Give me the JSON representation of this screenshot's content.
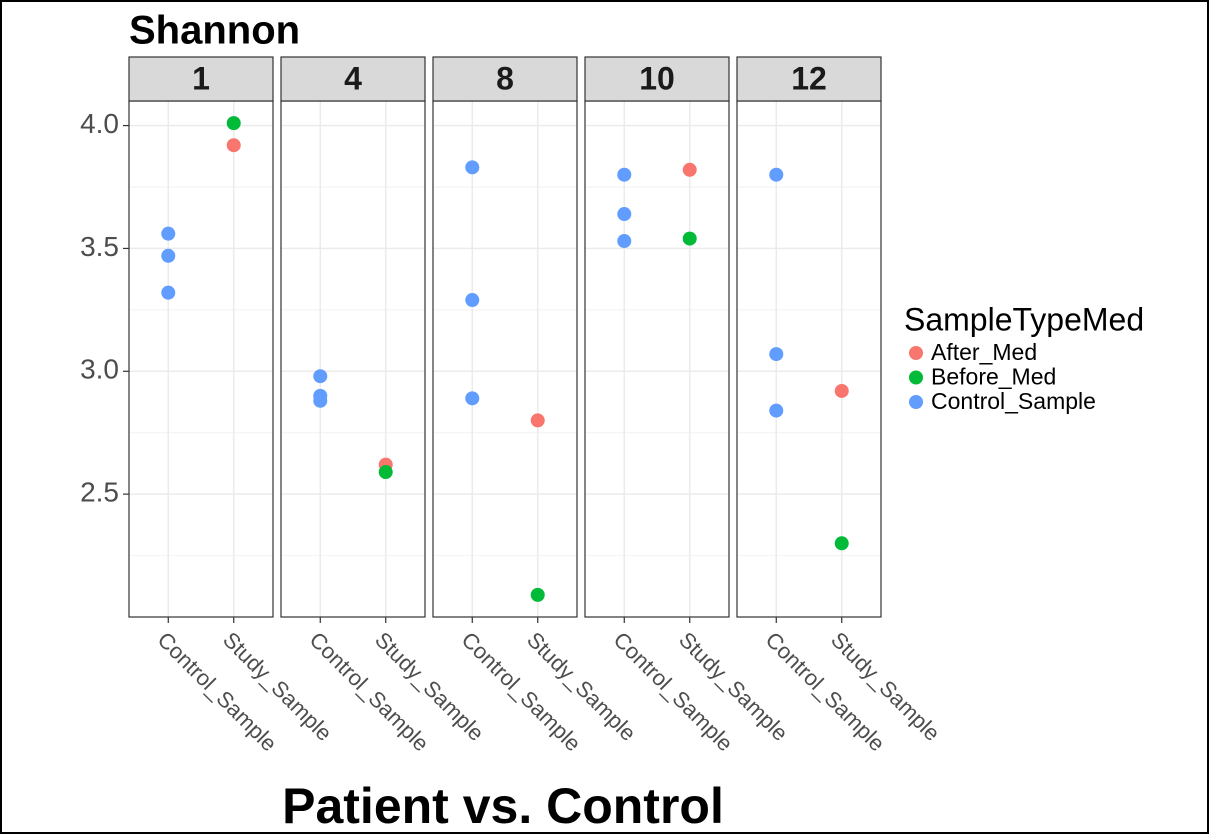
{
  "chart_data": {
    "type": "scatter",
    "title": "Shannon",
    "x_label": "Patient vs. Control",
    "legend_title": "SampleTypeMed",
    "legend_position": "right",
    "facets": [
      "1",
      "4",
      "8",
      "10",
      "12"
    ],
    "categories": [
      "Control_Sample",
      "Study_Sample"
    ],
    "ylim": [
      2.0,
      4.1
    ],
    "yticks": [
      {
        "value": 2.5,
        "label": "2.5"
      },
      {
        "value": 3.0,
        "label": "3.0"
      },
      {
        "value": 3.5,
        "label": "3.5"
      },
      {
        "value": 4.0,
        "label": "4.0"
      }
    ],
    "minor_yticks": [
      2.25,
      2.75,
      3.25,
      3.75
    ],
    "grid": true,
    "series": [
      {
        "name": "After_Med",
        "color": "#f8766d",
        "facet": [
          "1",
          "4",
          "8",
          "10",
          "12"
        ],
        "x": [
          "Study_Sample",
          "Study_Sample",
          "Study_Sample",
          "Study_Sample",
          "Study_Sample"
        ],
        "values": [
          3.92,
          2.62,
          2.8,
          3.82,
          2.92
        ]
      },
      {
        "name": "Before_Med",
        "color": "#00ba38",
        "facet": [
          "1",
          "4",
          "8",
          "10",
          "12"
        ],
        "x": [
          "Study_Sample",
          "Study_Sample",
          "Study_Sample",
          "Study_Sample",
          "Study_Sample"
        ],
        "values": [
          4.01,
          2.59,
          2.09,
          3.54,
          2.3
        ]
      },
      {
        "name": "Control_Sample",
        "color": "#619cff",
        "facet": [
          "1",
          "1",
          "1",
          "4",
          "4",
          "4",
          "8",
          "8",
          "8",
          "10",
          "10",
          "10",
          "12",
          "12",
          "12"
        ],
        "x": [
          "Control_Sample",
          "Control_Sample",
          "Control_Sample",
          "Control_Sample",
          "Control_Sample",
          "Control_Sample",
          "Control_Sample",
          "Control_Sample",
          "Control_Sample",
          "Control_Sample",
          "Control_Sample",
          "Control_Sample",
          "Control_Sample",
          "Control_Sample",
          "Control_Sample"
        ],
        "values": [
          3.56,
          3.47,
          3.32,
          2.98,
          2.9,
          2.88,
          3.83,
          3.29,
          2.89,
          3.8,
          3.64,
          3.53,
          3.8,
          3.07,
          2.84
        ]
      }
    ]
  }
}
